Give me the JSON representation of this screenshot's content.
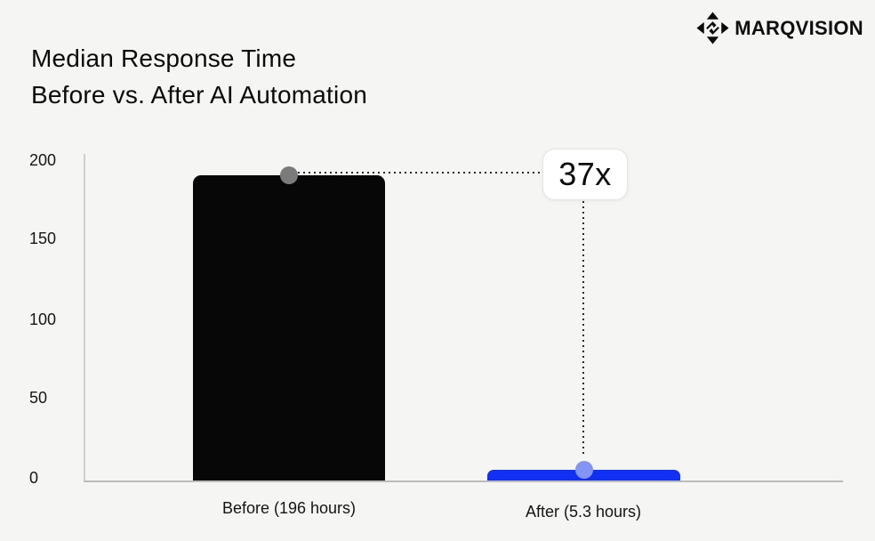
{
  "header": {
    "title_line1": "Median Response Time",
    "title_line2": "Before vs. After AI Automation",
    "brand_name": "MARQVISION"
  },
  "chart_data": {
    "type": "bar",
    "title": "Median Response Time Before vs. After AI Automation",
    "categories": [
      "Before (196 hours)",
      "After (5.3 hours)"
    ],
    "values": [
      196,
      5.3
    ],
    "units": "hours",
    "ylim": [
      0,
      200
    ],
    "ytick_labels": [
      "0",
      "50",
      "100",
      "150",
      "200"
    ],
    "annotation_label": "37x",
    "grid": false,
    "legend_position": "none",
    "colors": {
      "bar_before": "#070707",
      "bar_after": "#1230f4",
      "marker_before": "#7b7b7b",
      "marker_after": "#8295f5",
      "background": "#f5f5f4",
      "badge_background": "#ffffff"
    }
  }
}
